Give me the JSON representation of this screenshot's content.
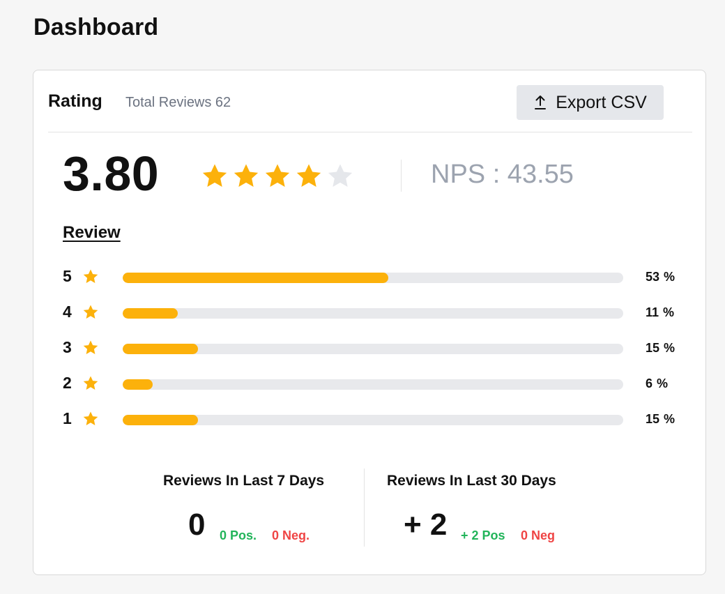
{
  "page": {
    "title": "Dashboard"
  },
  "header": {
    "title": "Rating",
    "total_reviews": "Total Reviews 62",
    "export_label": "Export CSV"
  },
  "summary": {
    "score": "3.80",
    "stars_filled": 4,
    "stars_total": 5,
    "nps": "NPS : 43.55"
  },
  "review": {
    "heading": "Review",
    "distribution": [
      {
        "stars": "5",
        "percent": 53,
        "pct_label": "53",
        "pct_sign": "%"
      },
      {
        "stars": "4",
        "percent": 11,
        "pct_label": "11",
        "pct_sign": "%"
      },
      {
        "stars": "3",
        "percent": 15,
        "pct_label": "15",
        "pct_sign": "%"
      },
      {
        "stars": "2",
        "percent": 6,
        "pct_label": "6",
        "pct_sign": "%"
      },
      {
        "stars": "1",
        "percent": 15,
        "pct_label": "15",
        "pct_sign": "%"
      }
    ]
  },
  "recent": {
    "last7": {
      "title": "Reviews In Last 7 Days",
      "count": "0",
      "pos": "0 Pos.",
      "neg": "0 Neg."
    },
    "last30": {
      "title": "Reviews In Last 30 Days",
      "count": "+ 2",
      "pos": "+ 2 Pos",
      "neg": "0 Neg"
    }
  },
  "colors": {
    "star_filled": "#fcb10b",
    "star_empty": "#e5e7eb",
    "positive": "#22b45a",
    "negative": "#ef4444",
    "bar_track": "#e8e9ec"
  },
  "icons": {
    "export": "upload-arrow-icon",
    "star": "star-icon"
  }
}
